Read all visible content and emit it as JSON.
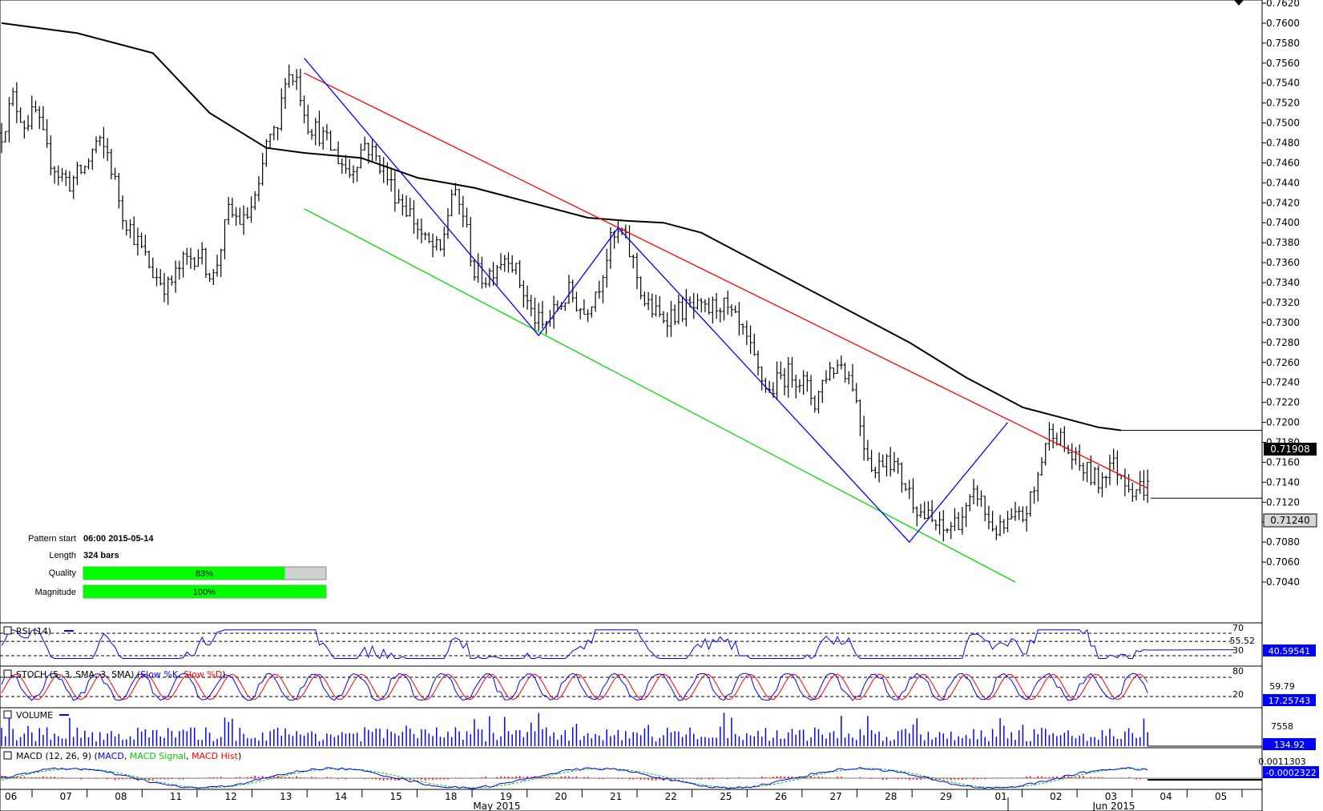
{
  "chart_data": {
    "type": "ohlc",
    "instrument_note": "",
    "price_axis": {
      "ylim": [
        0.7025,
        0.762
      ],
      "ticks": [
        "0.7620",
        "0.7600",
        "0.7580",
        "0.7560",
        "0.7540",
        "0.7520",
        "0.7500",
        "0.7480",
        "0.7460",
        "0.7440",
        "0.7420",
        "0.7400",
        "0.7380",
        "0.7360",
        "0.7340",
        "0.7320",
        "0.7300",
        "0.7280",
        "0.7260",
        "0.7240",
        "0.7220",
        "0.7200",
        "0.7180",
        "0.7160",
        "0.7140",
        "0.7120",
        "0.7100",
        "0.7080",
        "0.7060",
        "0.7040"
      ],
      "current_price_label": "0.71240",
      "ma_price_label": "0.71908"
    },
    "x_axis": {
      "day_labels": [
        "06",
        "07",
        "08",
        "11",
        "12",
        "13",
        "14",
        "15",
        "18",
        "19",
        "20",
        "21",
        "22",
        "25",
        "26",
        "27",
        "28",
        "29",
        "01",
        "02",
        "03",
        "04",
        "05"
      ],
      "month_labels": [
        "May 2015",
        "Jun 2015"
      ]
    },
    "price_path": [
      [
        0,
        0.749
      ],
      [
        3,
        0.7525
      ],
      [
        6,
        0.75
      ],
      [
        9,
        0.751
      ],
      [
        12,
        0.747
      ],
      [
        15,
        0.745
      ],
      [
        18,
        0.744
      ],
      [
        22,
        0.7455
      ],
      [
        25,
        0.748
      ],
      [
        28,
        0.747
      ],
      [
        32,
        0.741
      ],
      [
        36,
        0.738
      ],
      [
        40,
        0.735
      ],
      [
        44,
        0.7335
      ],
      [
        48,
        0.736
      ],
      [
        52,
        0.737
      ],
      [
        56,
        0.7345
      ],
      [
        60,
        0.741
      ],
      [
        64,
        0.74
      ],
      [
        68,
        0.743
      ],
      [
        70,
        0.748
      ],
      [
        73,
        0.749
      ],
      [
        75,
        0.755
      ],
      [
        78,
        0.7545
      ],
      [
        81,
        0.75
      ],
      [
        84,
        0.749
      ],
      [
        88,
        0.747
      ],
      [
        92,
        0.745
      ],
      [
        96,
        0.748
      ],
      [
        100,
        0.746
      ],
      [
        104,
        0.743
      ],
      [
        108,
        0.741
      ],
      [
        112,
        0.738
      ],
      [
        116,
        0.737
      ],
      [
        119,
        0.743
      ],
      [
        122,
        0.741
      ],
      [
        125,
        0.735
      ],
      [
        128,
        0.7345
      ],
      [
        131,
        0.736
      ],
      [
        134,
        0.737
      ],
      [
        137,
        0.734
      ],
      [
        140,
        0.731
      ],
      [
        143,
        0.7295
      ],
      [
        146,
        0.731
      ],
      [
        150,
        0.733
      ],
      [
        154,
        0.731
      ],
      [
        158,
        0.734
      ],
      [
        161,
        0.738
      ],
      [
        164,
        0.739
      ],
      [
        167,
        0.736
      ],
      [
        170,
        0.732
      ],
      [
        174,
        0.7305
      ],
      [
        178,
        0.731
      ],
      [
        182,
        0.7315
      ],
      [
        186,
        0.731
      ],
      [
        190,
        0.732
      ],
      [
        194,
        0.73
      ],
      [
        197,
        0.728
      ],
      [
        200,
        0.725
      ],
      [
        203,
        0.723
      ],
      [
        206,
        0.7245
      ],
      [
        209,
        0.725
      ],
      [
        212,
        0.724
      ],
      [
        215,
        0.722
      ],
      [
        218,
        0.725
      ],
      [
        222,
        0.726
      ],
      [
        225,
        0.724
      ],
      [
        228,
        0.718
      ],
      [
        231,
        0.715
      ],
      [
        234,
        0.717
      ],
      [
        237,
        0.715
      ],
      [
        240,
        0.713
      ],
      [
        243,
        0.711
      ],
      [
        246,
        0.71
      ],
      [
        249,
        0.709
      ],
      [
        252,
        0.71
      ],
      [
        255,
        0.711
      ],
      [
        258,
        0.713
      ],
      [
        261,
        0.71
      ],
      [
        264,
        0.709
      ],
      [
        267,
        0.71
      ],
      [
        270,
        0.7105
      ],
      [
        273,
        0.713
      ],
      [
        276,
        0.718
      ],
      [
        278,
        0.7195
      ],
      [
        281,
        0.7175
      ],
      [
        284,
        0.716
      ],
      [
        287,
        0.715
      ],
      [
        290,
        0.714
      ],
      [
        293,
        0.716
      ],
      [
        296,
        0.715
      ],
      [
        299,
        0.7135
      ],
      [
        302,
        0.7135
      ]
    ],
    "n_bars": 304,
    "ma_path": [
      [
        0,
        0.76
      ],
      [
        20,
        0.759
      ],
      [
        40,
        0.757
      ],
      [
        55,
        0.751
      ],
      [
        70,
        0.7475
      ],
      [
        80,
        0.747
      ],
      [
        95,
        0.7465
      ],
      [
        110,
        0.7445
      ],
      [
        125,
        0.7435
      ],
      [
        140,
        0.742
      ],
      [
        155,
        0.7405
      ],
      [
        165,
        0.7402
      ],
      [
        175,
        0.74
      ],
      [
        185,
        0.739
      ],
      [
        195,
        0.737
      ],
      [
        210,
        0.734
      ],
      [
        225,
        0.731
      ],
      [
        240,
        0.728
      ],
      [
        255,
        0.7245
      ],
      [
        270,
        0.7215
      ],
      [
        280,
        0.7205
      ],
      [
        290,
        0.7195
      ],
      [
        296,
        0.7192
      ]
    ],
    "pattern": {
      "resistance": {
        "start": [
          80,
          0.755
        ],
        "end": [
          303,
          0.7134
        ],
        "color": "#ff0000"
      },
      "support": {
        "start": [
          80,
          0.7414
        ],
        "end": [
          268,
          0.704
        ],
        "color": "#00dd00"
      },
      "zigzag": [
        [
          80,
          0.7565
        ],
        [
          142,
          0.7287
        ],
        [
          163,
          0.7395
        ],
        [
          240,
          0.708
        ],
        [
          266,
          0.72
        ]
      ],
      "zigzag_color": "#0000ff"
    },
    "info": {
      "pattern_start_label": "Pattern start",
      "pattern_start_value": "06:00 2015-05-14",
      "length_label": "Length",
      "length_value": "324 bars",
      "quality_label": "Quality",
      "quality_value": "83%",
      "quality_fraction": 0.83,
      "magnitude_label": "Magnitude",
      "magnitude_value": "100%",
      "magnitude_fraction": 1.0
    },
    "indicators": {
      "rsi": {
        "title": "RSI (14)",
        "value_label": "40.59541",
        "level_high": "70",
        "level_mid": "55.52",
        "level_low": "30",
        "current": 40.6
      },
      "stoch": {
        "title_prefix": "STOCH (5, 3, SMA, 3, SMA)",
        "k_label": "Slow %K",
        "d_label": "Slow %D",
        "value_label": "17.25743",
        "level_high": "80",
        "level_mid": "59.79",
        "level_low": "20"
      },
      "volume": {
        "title": "VOLUME",
        "top_label": "7558",
        "value_label": "134.92"
      },
      "macd": {
        "title_prefix": "MACD (12, 26, 9)",
        "macd_label": "MACD",
        "signal_label": "MACD Signal",
        "hist_label": "MACD Hist",
        "top_label": "0.0011303",
        "value_label": "-0.0002322"
      }
    },
    "colors": {
      "bar": "#000000",
      "ma": "#000000",
      "rsi": "#0000ff",
      "stoch_k": "#0000ff",
      "stoch_d": "#ff0000",
      "volume": "#0000ff",
      "macd": "#0000ff",
      "macd_signal": "#00cc00",
      "macd_hist": "#ff0000",
      "badge": "#0000ff",
      "quality": "#00ff00"
    }
  }
}
